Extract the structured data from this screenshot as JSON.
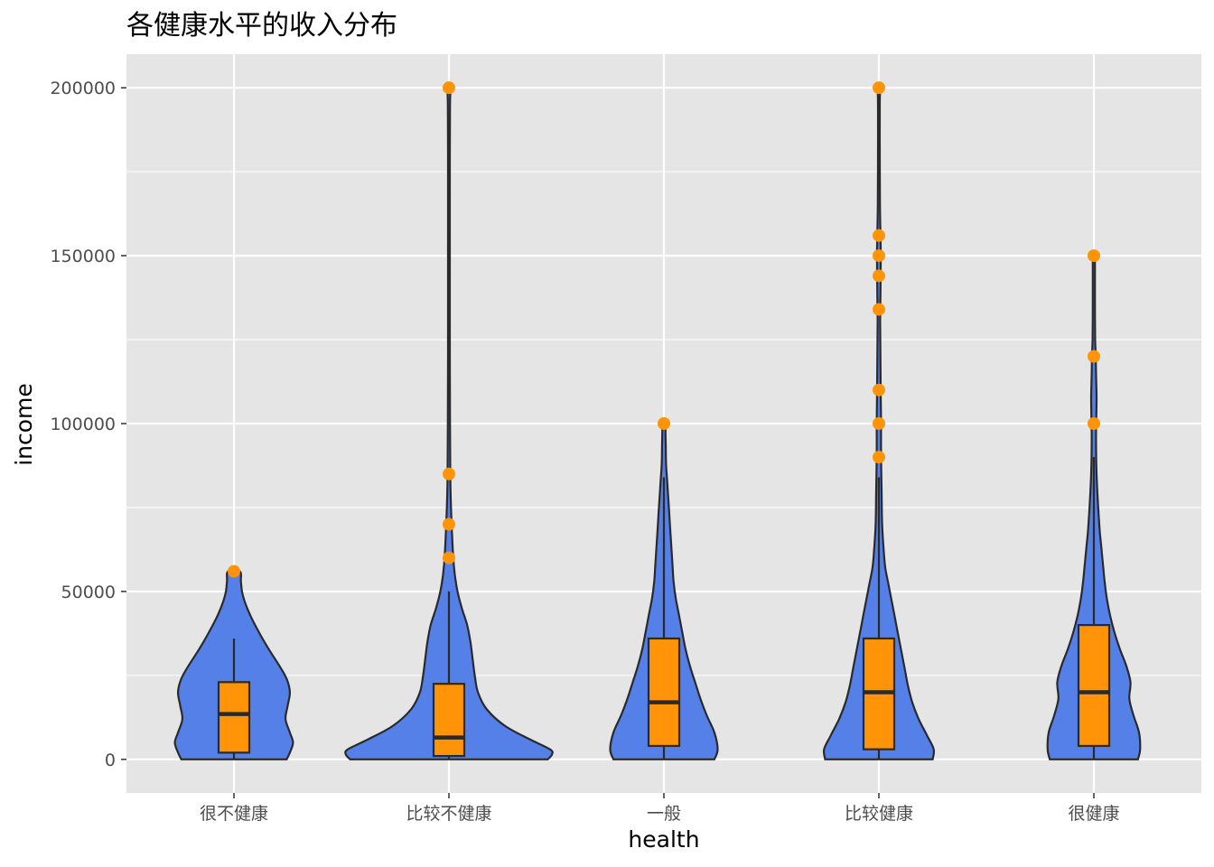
{
  "chart_data": {
    "type": "violin",
    "title": "各健康水平的收入分布",
    "xlabel": "health",
    "ylabel": "income",
    "categories": [
      "很不健康",
      "比较不健康",
      "一般",
      "比较健康",
      "很健康"
    ],
    "ylim": [
      -10000,
      210000
    ],
    "yticks": [
      0,
      50000,
      100000,
      150000,
      200000
    ],
    "ytick_labels": [
      "0",
      "50000",
      "100000",
      "150000",
      "200000"
    ],
    "grid": true,
    "colors": {
      "panel": "#e5e5e5",
      "grid": "#ffffff",
      "violin_fill": "#5580e8",
      "outline": "#2a2a2a",
      "box_fill": "#ff9408",
      "outlier": "#ff9408"
    },
    "series": [
      {
        "category": "很不健康",
        "box": {
          "q1": 2000,
          "median": 13500,
          "q3": 23000,
          "whisker_low": 0,
          "whisker_high": 36000
        },
        "outliers": [
          56000
        ],
        "violin": [
          [
            0,
            0.49
          ],
          [
            2000,
            0.52
          ],
          [
            5000,
            0.55
          ],
          [
            8000,
            0.52
          ],
          [
            12000,
            0.48
          ],
          [
            16000,
            0.5
          ],
          [
            20000,
            0.52
          ],
          [
            24000,
            0.49
          ],
          [
            28000,
            0.42
          ],
          [
            33000,
            0.32
          ],
          [
            38000,
            0.23
          ],
          [
            43000,
            0.15
          ],
          [
            47000,
            0.1
          ],
          [
            50000,
            0.075
          ],
          [
            53000,
            0.065
          ],
          [
            56000,
            0.055
          ]
        ]
      },
      {
        "category": "比较不健康",
        "box": {
          "q1": 1000,
          "median": 6500,
          "q3": 22500,
          "whisker_low": 0,
          "whisker_high": 50000
        },
        "outliers": [
          60000,
          70000,
          85000,
          200000
        ],
        "violin": [
          [
            0,
            0.92
          ],
          [
            1500,
            0.96
          ],
          [
            3000,
            0.94
          ],
          [
            6000,
            0.75
          ],
          [
            10000,
            0.52
          ],
          [
            15000,
            0.35
          ],
          [
            20000,
            0.27
          ],
          [
            25000,
            0.24
          ],
          [
            30000,
            0.22
          ],
          [
            35000,
            0.2
          ],
          [
            40000,
            0.17
          ],
          [
            45000,
            0.12
          ],
          [
            50000,
            0.08
          ],
          [
            55000,
            0.055
          ],
          [
            60000,
            0.04
          ],
          [
            70000,
            0.025
          ],
          [
            80000,
            0.015
          ],
          [
            90000,
            0.012
          ],
          [
            100000,
            0.01
          ],
          [
            120000,
            0.008
          ],
          [
            150000,
            0.008
          ],
          [
            180000,
            0.008
          ],
          [
            195000,
            0.01
          ],
          [
            200000,
            0.012
          ]
        ]
      },
      {
        "category": "一般",
        "box": {
          "q1": 4000,
          "median": 17000,
          "q3": 36000,
          "whisker_low": 0,
          "whisker_high": 84000
        },
        "outliers": [
          100000
        ],
        "violin": [
          [
            0,
            0.47
          ],
          [
            3000,
            0.5
          ],
          [
            8000,
            0.47
          ],
          [
            13000,
            0.4
          ],
          [
            18000,
            0.34
          ],
          [
            23000,
            0.29
          ],
          [
            28000,
            0.24
          ],
          [
            33000,
            0.2
          ],
          [
            38000,
            0.17
          ],
          [
            43000,
            0.14
          ],
          [
            48000,
            0.11
          ],
          [
            53000,
            0.09
          ],
          [
            58000,
            0.08
          ],
          [
            63000,
            0.07
          ],
          [
            68000,
            0.06
          ],
          [
            73000,
            0.05
          ],
          [
            78000,
            0.04
          ],
          [
            83000,
            0.03
          ],
          [
            88000,
            0.02
          ],
          [
            93000,
            0.018
          ],
          [
            97000,
            0.015
          ],
          [
            100000,
            0.012
          ]
        ]
      },
      {
        "category": "比较健康",
        "box": {
          "q1": 3000,
          "median": 20000,
          "q3": 36000,
          "whisker_low": 0,
          "whisker_high": 84000
        },
        "outliers": [
          90000,
          100000,
          110000,
          134000,
          144000,
          150000,
          156000,
          200000
        ],
        "violin": [
          [
            0,
            0.5
          ],
          [
            3000,
            0.51
          ],
          [
            7000,
            0.45
          ],
          [
            12000,
            0.37
          ],
          [
            17000,
            0.31
          ],
          [
            22000,
            0.27
          ],
          [
            27000,
            0.24
          ],
          [
            32000,
            0.21
          ],
          [
            37000,
            0.18
          ],
          [
            42000,
            0.15
          ],
          [
            47000,
            0.12
          ],
          [
            52000,
            0.09
          ],
          [
            57000,
            0.06
          ],
          [
            62000,
            0.045
          ],
          [
            70000,
            0.03
          ],
          [
            80000,
            0.025
          ],
          [
            90000,
            0.02
          ],
          [
            100000,
            0.02
          ],
          [
            110000,
            0.017
          ],
          [
            120000,
            0.014
          ],
          [
            130000,
            0.012
          ],
          [
            140000,
            0.015
          ],
          [
            150000,
            0.018
          ],
          [
            156000,
            0.015
          ],
          [
            165000,
            0.01
          ],
          [
            180000,
            0.008
          ],
          [
            195000,
            0.008
          ],
          [
            200000,
            0.01
          ]
        ]
      },
      {
        "category": "很健康",
        "box": {
          "q1": 4000,
          "median": 20000,
          "q3": 40000,
          "whisker_low": 0,
          "whisker_high": 90000
        },
        "outliers": [
          100000,
          120000,
          150000
        ],
        "violin": [
          [
            0,
            0.41
          ],
          [
            3000,
            0.43
          ],
          [
            8000,
            0.42
          ],
          [
            13000,
            0.37
          ],
          [
            18000,
            0.33
          ],
          [
            23000,
            0.34
          ],
          [
            28000,
            0.3
          ],
          [
            33000,
            0.24
          ],
          [
            38000,
            0.19
          ],
          [
            43000,
            0.15
          ],
          [
            48000,
            0.12
          ],
          [
            53000,
            0.1
          ],
          [
            58000,
            0.085
          ],
          [
            63000,
            0.07
          ],
          [
            68000,
            0.055
          ],
          [
            75000,
            0.04
          ],
          [
            85000,
            0.025
          ],
          [
            95000,
            0.02
          ],
          [
            100000,
            0.022
          ],
          [
            108000,
            0.025
          ],
          [
            115000,
            0.02
          ],
          [
            120000,
            0.018
          ],
          [
            125000,
            0.012
          ],
          [
            135000,
            0.01
          ],
          [
            145000,
            0.01
          ],
          [
            150000,
            0.008
          ]
        ]
      }
    ]
  }
}
